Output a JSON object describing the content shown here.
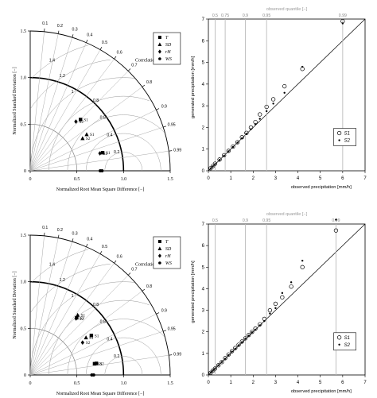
{
  "chart_data": [
    {
      "type": "scatter",
      "subtype": "taylor-diagram",
      "ylabel": "Normalized Standard Deviation [−]",
      "xlabel": "Normalized Root Mean Square Difference [−]",
      "correlation_label": "Correlation [−]",
      "axis_ticks": [
        "0",
        "0.5",
        "1.0",
        "1.5"
      ],
      "correlation_ticks": [
        0.1,
        0.2,
        0.3,
        0.4,
        0.5,
        0.6,
        0.7,
        0.8,
        0.9,
        0.95,
        0.99
      ],
      "rmsd_arc_labels": [
        "1.4",
        "1.2",
        "1",
        "0.8",
        "0.6",
        "0.4",
        "0.2"
      ],
      "legend": [
        {
          "symbol": "square",
          "label": "T"
        },
        {
          "symbol": "triangle",
          "label": "SD"
        },
        {
          "symbol": "diamond",
          "label": "rH"
        },
        {
          "symbol": "dot",
          "label": "WS"
        }
      ],
      "points": [
        {
          "var": "T",
          "scenario": "S1",
          "r": 0.7,
          "sd": 0.77
        },
        {
          "var": "rH",
          "scenario": "S2",
          "r": 0.68,
          "sd": 0.72
        },
        {
          "var": "SD",
          "scenario": "S1",
          "r": 0.84,
          "sd": 0.72
        },
        {
          "var": "SD",
          "scenario": "S2",
          "r": 0.85,
          "sd": 0.66
        },
        {
          "var": "T",
          "scenario": "S1",
          "r": 0.97,
          "sd": 0.8
        },
        {
          "var": "rH",
          "scenario": "S2",
          "r": 0.97,
          "sd": 0.77
        },
        {
          "var": "WS",
          "scenario": "",
          "r": 1.0,
          "sd": 0.77
        },
        {
          "var": "WS",
          "scenario": "",
          "r": 1.0,
          "sd": 0.75
        }
      ]
    },
    {
      "type": "scatter",
      "subtype": "qq-plot",
      "xlabel": "observed precipitation [mm/h]",
      "ylabel": "generated precipitation [mm/h]",
      "top_axis_label": "observed quantile [−]",
      "xlim": [
        0,
        7
      ],
      "ylim": [
        0,
        7
      ],
      "ticks": [
        0,
        1,
        2,
        3,
        4,
        5,
        6,
        7
      ],
      "quantile_lines": [
        {
          "label": "0.5",
          "x": 0.3
        },
        {
          "label": "0.75",
          "x": 0.75
        },
        {
          "label": "0.9",
          "x": 1.65
        },
        {
          "label": "0.95",
          "x": 2.6
        },
        {
          "label": "0.99",
          "x": 6.0
        }
      ],
      "series": [
        {
          "name": "S1",
          "symbol": "open-circle",
          "x": [
            0.1,
            0.2,
            0.3,
            0.5,
            0.7,
            0.9,
            1.1,
            1.3,
            1.5,
            1.7,
            1.9,
            2.1,
            2.3,
            2.6,
            2.9,
            3.4,
            4.2,
            6.0
          ],
          "y": [
            0.12,
            0.22,
            0.33,
            0.52,
            0.72,
            0.92,
            1.12,
            1.32,
            1.55,
            1.75,
            2.0,
            2.25,
            2.6,
            2.95,
            3.3,
            3.9,
            4.7,
            6.9
          ]
        },
        {
          "name": "S2",
          "symbol": "filled-dot",
          "x": [
            0.1,
            0.2,
            0.3,
            0.5,
            0.7,
            0.9,
            1.1,
            1.3,
            1.5,
            1.7,
            1.9,
            2.1,
            2.3,
            2.6,
            2.9,
            3.4,
            4.2,
            6.0
          ],
          "y": [
            0.11,
            0.21,
            0.31,
            0.5,
            0.7,
            0.9,
            1.1,
            1.3,
            1.5,
            1.7,
            1.92,
            2.15,
            2.4,
            2.75,
            3.1,
            3.6,
            4.8,
            6.8
          ]
        }
      ],
      "legend": [
        "S1",
        "S2"
      ]
    },
    {
      "type": "scatter",
      "subtype": "taylor-diagram",
      "ylabel": "Normalized Standard Deviation [−]",
      "xlabel": "Normalized Root Mean Square Difference [−]",
      "correlation_label": "Correlation [−]",
      "axis_ticks": [
        "0",
        "0.5",
        "1.0",
        "1.5"
      ],
      "correlation_ticks": [
        0.1,
        0.2,
        0.3,
        0.4,
        0.5,
        0.6,
        0.7,
        0.8,
        0.9,
        0.95,
        0.99
      ],
      "rmsd_arc_labels": [
        "1.4",
        "1.2",
        "1",
        "0.8",
        "0.6",
        "0.4",
        "0.2"
      ],
      "legend": [
        {
          "symbol": "square",
          "label": "T"
        },
        {
          "symbol": "triangle",
          "label": "SD"
        },
        {
          "symbol": "diamond",
          "label": "rH"
        },
        {
          "symbol": "dot",
          "label": "WS"
        }
      ],
      "points": [
        {
          "var": "SD",
          "scenario": "S1",
          "r": 0.62,
          "sd": 0.82
        },
        {
          "var": "T",
          "scenario": "S2",
          "r": 0.63,
          "sd": 0.79
        },
        {
          "var": "rH",
          "scenario": "S2",
          "r": 0.63,
          "sd": 0.78
        },
        {
          "var": "T",
          "scenario": "S1",
          "r": 0.84,
          "sd": 0.78
        },
        {
          "var": "SD",
          "scenario": "S1",
          "r": 0.83,
          "sd": 0.72
        },
        {
          "var": "rH",
          "scenario": "S2",
          "r": 0.85,
          "sd": 0.66
        },
        {
          "var": "T",
          "scenario": "S2",
          "r": 0.985,
          "sd": 0.72
        },
        {
          "var": "T",
          "scenario": "S1",
          "r": 0.985,
          "sd": 0.7
        },
        {
          "var": "WS",
          "scenario": "",
          "r": 1.0,
          "sd": 0.68
        },
        {
          "var": "WS",
          "scenario": "",
          "r": 1.0,
          "sd": 0.66
        }
      ]
    },
    {
      "type": "scatter",
      "subtype": "qq-plot",
      "xlabel": "observed precipitation [mm/h]",
      "ylabel": "generated precipitation [mm/h]",
      "top_axis_label": "observed quantile [−]",
      "xlim": [
        0,
        7
      ],
      "ylim": [
        0,
        7
      ],
      "ticks": [
        0,
        1,
        2,
        3,
        4,
        5,
        6,
        7
      ],
      "quantile_lines": [
        {
          "label": "0.5",
          "x": 0.3
        },
        {
          "label": "0.9",
          "x": 1.65
        },
        {
          "label": "0.95",
          "x": 2.6
        },
        {
          "label": "0.99",
          "x": 5.7
        }
      ],
      "series": [
        {
          "name": "S1",
          "symbol": "open-circle",
          "x": [
            0.1,
            0.2,
            0.3,
            0.45,
            0.6,
            0.75,
            0.9,
            1.05,
            1.2,
            1.35,
            1.5,
            1.65,
            1.8,
            1.95,
            2.1,
            2.3,
            2.5,
            2.75,
            3.0,
            3.3,
            3.7,
            4.2,
            5.7
          ],
          "y": [
            0.1,
            0.2,
            0.3,
            0.45,
            0.6,
            0.78,
            0.95,
            1.1,
            1.25,
            1.4,
            1.55,
            1.7,
            1.85,
            2.0,
            2.15,
            2.35,
            2.6,
            3.0,
            3.3,
            3.6,
            4.1,
            5.0,
            6.7
          ]
        },
        {
          "name": "S2",
          "symbol": "filled-dot",
          "x": [
            0.1,
            0.2,
            0.3,
            0.45,
            0.6,
            0.75,
            0.9,
            1.05,
            1.2,
            1.35,
            1.5,
            1.65,
            1.8,
            1.95,
            2.1,
            2.3,
            2.5,
            2.75,
            3.0,
            3.3,
            3.7,
            4.2,
            5.7
          ],
          "y": [
            0.1,
            0.2,
            0.3,
            0.45,
            0.6,
            0.75,
            0.92,
            1.08,
            1.22,
            1.38,
            1.52,
            1.68,
            1.82,
            1.98,
            2.1,
            2.3,
            2.5,
            2.85,
            3.1,
            3.8,
            4.3,
            5.3,
            7.2
          ]
        }
      ],
      "legend": [
        "S1",
        "S2"
      ]
    }
  ]
}
